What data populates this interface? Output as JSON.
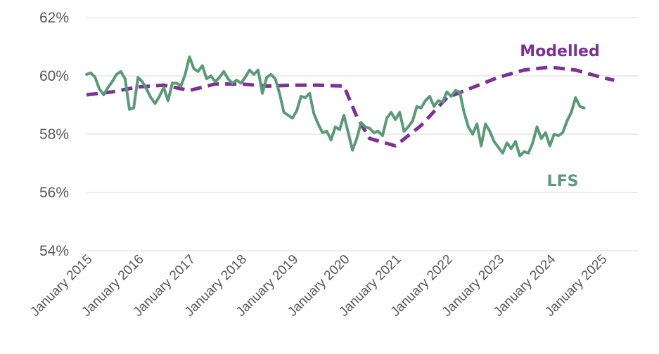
{
  "chart_data": {
    "type": "line",
    "title": "",
    "xlabel": "",
    "ylabel": "",
    "ylim": [
      54,
      62
    ],
    "y_ticks": [
      "54%",
      "56%",
      "58%",
      "60%",
      "62%"
    ],
    "x_ticks": [
      "January 2015",
      "January 2016",
      "January 2017",
      "January 2018",
      "January 2019",
      "January 2020",
      "January 2021",
      "January 2022",
      "January 2023",
      "January 2024",
      "January 2025"
    ],
    "grid": true,
    "series": [
      {
        "name": "Modelled",
        "color": "#7b3294",
        "style": "dashed",
        "points": [
          [
            "2015-01",
            59.35
          ],
          [
            "2015-07",
            59.45
          ],
          [
            "2016-01",
            59.62
          ],
          [
            "2016-07",
            59.68
          ],
          [
            "2017-01",
            59.5
          ],
          [
            "2017-07",
            59.72
          ],
          [
            "2018-01",
            59.72
          ],
          [
            "2018-07",
            59.65
          ],
          [
            "2019-01",
            59.68
          ],
          [
            "2019-07",
            59.68
          ],
          [
            "2020-01",
            59.65
          ],
          [
            "2020-04",
            58.6
          ],
          [
            "2020-07",
            57.85
          ],
          [
            "2021-01",
            57.6
          ],
          [
            "2021-07",
            58.3
          ],
          [
            "2022-01",
            59.25
          ],
          [
            "2022-07",
            59.6
          ],
          [
            "2023-01",
            59.95
          ],
          [
            "2023-07",
            60.2
          ],
          [
            "2024-01",
            60.3
          ],
          [
            "2024-07",
            60.2
          ],
          [
            "2025-01",
            59.95
          ],
          [
            "2025-04",
            59.85
          ]
        ]
      },
      {
        "name": "LFS",
        "color": "#5a9a78",
        "style": "solid",
        "points": [
          [
            "2015-01",
            60.05
          ],
          [
            "2015-02",
            60.1
          ],
          [
            "2015-03",
            59.95
          ],
          [
            "2015-04",
            59.55
          ],
          [
            "2015-05",
            59.35
          ],
          [
            "2015-06",
            59.6
          ],
          [
            "2015-07",
            59.8
          ],
          [
            "2015-08",
            60.05
          ],
          [
            "2015-09",
            60.15
          ],
          [
            "2015-10",
            59.9
          ],
          [
            "2015-11",
            58.85
          ],
          [
            "2015-12",
            58.9
          ],
          [
            "2016-01",
            59.95
          ],
          [
            "2016-02",
            59.8
          ],
          [
            "2016-03",
            59.55
          ],
          [
            "2016-04",
            59.25
          ],
          [
            "2016-05",
            59.05
          ],
          [
            "2016-06",
            59.3
          ],
          [
            "2016-07",
            59.6
          ],
          [
            "2016-08",
            59.15
          ],
          [
            "2016-09",
            59.75
          ],
          [
            "2016-10",
            59.75
          ],
          [
            "2016-11",
            59.65
          ],
          [
            "2016-12",
            60.05
          ],
          [
            "2017-01",
            60.65
          ],
          [
            "2017-02",
            60.25
          ],
          [
            "2017-03",
            60.15
          ],
          [
            "2017-04",
            60.35
          ],
          [
            "2017-05",
            59.9
          ],
          [
            "2017-06",
            60.0
          ],
          [
            "2017-07",
            59.8
          ],
          [
            "2017-08",
            59.95
          ],
          [
            "2017-09",
            60.15
          ],
          [
            "2017-10",
            59.9
          ],
          [
            "2017-11",
            59.75
          ],
          [
            "2017-12",
            59.85
          ],
          [
            "2018-01",
            59.75
          ],
          [
            "2018-02",
            59.95
          ],
          [
            "2018-03",
            60.2
          ],
          [
            "2018-04",
            60.05
          ],
          [
            "2018-05",
            60.2
          ],
          [
            "2018-06",
            59.4
          ],
          [
            "2018-07",
            59.95
          ],
          [
            "2018-08",
            60.05
          ],
          [
            "2018-09",
            59.9
          ],
          [
            "2018-10",
            59.4
          ],
          [
            "2018-11",
            58.75
          ],
          [
            "2018-12",
            58.65
          ],
          [
            "2019-01",
            58.55
          ],
          [
            "2019-02",
            58.8
          ],
          [
            "2019-03",
            59.3
          ],
          [
            "2019-04",
            59.25
          ],
          [
            "2019-05",
            59.4
          ],
          [
            "2019-06",
            58.7
          ],
          [
            "2019-07",
            58.35
          ],
          [
            "2019-08",
            58.05
          ],
          [
            "2019-09",
            58.1
          ],
          [
            "2019-10",
            57.8
          ],
          [
            "2019-11",
            58.25
          ],
          [
            "2019-12",
            58.15
          ],
          [
            "2020-01",
            58.65
          ],
          [
            "2020-02",
            58.05
          ],
          [
            "2020-03",
            57.45
          ],
          [
            "2020-04",
            57.85
          ],
          [
            "2020-05",
            58.4
          ],
          [
            "2020-06",
            58.25
          ],
          [
            "2020-07",
            58.2
          ],
          [
            "2020-08",
            58.05
          ],
          [
            "2020-09",
            58.1
          ],
          [
            "2020-10",
            57.95
          ],
          [
            "2020-11",
            58.55
          ],
          [
            "2020-12",
            58.75
          ],
          [
            "2021-01",
            58.5
          ],
          [
            "2021-02",
            58.75
          ],
          [
            "2021-03",
            58.1
          ],
          [
            "2021-04",
            58.25
          ],
          [
            "2021-05",
            58.45
          ],
          [
            "2021-06",
            58.95
          ],
          [
            "2021-07",
            58.9
          ],
          [
            "2021-08",
            59.15
          ],
          [
            "2021-09",
            59.3
          ],
          [
            "2021-10",
            58.95
          ],
          [
            "2021-11",
            59.15
          ],
          [
            "2021-12",
            59.1
          ],
          [
            "2022-01",
            59.45
          ],
          [
            "2022-02",
            59.3
          ],
          [
            "2022-03",
            59.5
          ],
          [
            "2022-04",
            59.45
          ],
          [
            "2022-05",
            58.75
          ],
          [
            "2022-06",
            58.25
          ],
          [
            "2022-07",
            58.0
          ],
          [
            "2022-08",
            58.35
          ],
          [
            "2022-09",
            57.6
          ],
          [
            "2022-10",
            58.35
          ],
          [
            "2022-11",
            58.1
          ],
          [
            "2022-12",
            57.75
          ],
          [
            "2023-01",
            57.55
          ],
          [
            "2023-02",
            57.35
          ],
          [
            "2023-03",
            57.7
          ],
          [
            "2023-04",
            57.5
          ],
          [
            "2023-05",
            57.75
          ],
          [
            "2023-06",
            57.25
          ],
          [
            "2023-07",
            57.4
          ],
          [
            "2023-08",
            57.35
          ],
          [
            "2023-09",
            57.7
          ],
          [
            "2023-10",
            58.25
          ],
          [
            "2023-11",
            57.85
          ],
          [
            "2023-12",
            58.05
          ],
          [
            "2024-01",
            57.6
          ],
          [
            "2024-02",
            58.0
          ],
          [
            "2024-03",
            57.95
          ],
          [
            "2024-04",
            58.05
          ],
          [
            "2024-05",
            58.45
          ],
          [
            "2024-06",
            58.75
          ],
          [
            "2024-07",
            59.25
          ],
          [
            "2024-08",
            58.95
          ],
          [
            "2024-09",
            58.9
          ]
        ]
      }
    ],
    "annotations": [
      {
        "text": "Modelled",
        "series": "Modelled",
        "color": "#7b3294"
      },
      {
        "text": "LFS",
        "series": "LFS",
        "color": "#5a9a78"
      }
    ]
  }
}
